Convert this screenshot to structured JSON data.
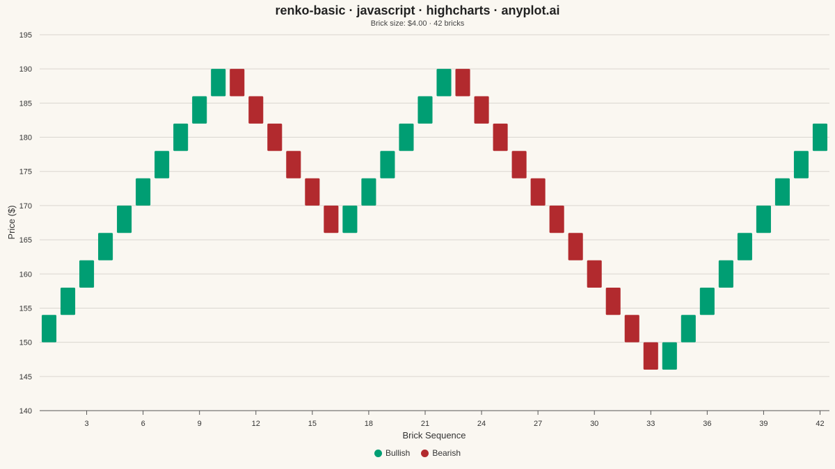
{
  "chart_data": {
    "type": "renko",
    "title": "renko-basic · javascript · highcharts · anyplot.ai",
    "subtitle": "Brick size: $4.00 · 42 bricks",
    "xlabel": "Brick Sequence",
    "ylabel": "Price ($)",
    "xlim": [
      0.5,
      42.5
    ],
    "ylim": [
      140,
      195
    ],
    "x_ticks": [
      3,
      6,
      9,
      12,
      15,
      18,
      21,
      24,
      27,
      30,
      33,
      36,
      39,
      42
    ],
    "y_ticks": [
      140,
      145,
      150,
      155,
      160,
      165,
      170,
      175,
      180,
      185,
      190,
      195
    ],
    "grid": true,
    "legend_position": "bottom",
    "colors": {
      "bullish": "#009E73",
      "bearish": "#B22A2E"
    },
    "series": [
      {
        "name": "Bullish",
        "color": "#009E73"
      },
      {
        "name": "Bearish",
        "color": "#B22A2E"
      }
    ],
    "bricks": [
      {
        "x": 1,
        "low": 150,
        "high": 154,
        "dir": "up"
      },
      {
        "x": 2,
        "low": 154,
        "high": 158,
        "dir": "up"
      },
      {
        "x": 3,
        "low": 158,
        "high": 162,
        "dir": "up"
      },
      {
        "x": 4,
        "low": 162,
        "high": 166,
        "dir": "up"
      },
      {
        "x": 5,
        "low": 166,
        "high": 170,
        "dir": "up"
      },
      {
        "x": 6,
        "low": 170,
        "high": 174,
        "dir": "up"
      },
      {
        "x": 7,
        "low": 174,
        "high": 178,
        "dir": "up"
      },
      {
        "x": 8,
        "low": 178,
        "high": 182,
        "dir": "up"
      },
      {
        "x": 9,
        "low": 182,
        "high": 186,
        "dir": "up"
      },
      {
        "x": 10,
        "low": 186,
        "high": 190,
        "dir": "up"
      },
      {
        "x": 11,
        "low": 186,
        "high": 190,
        "dir": "down"
      },
      {
        "x": 12,
        "low": 182,
        "high": 186,
        "dir": "down"
      },
      {
        "x": 13,
        "low": 178,
        "high": 182,
        "dir": "down"
      },
      {
        "x": 14,
        "low": 174,
        "high": 178,
        "dir": "down"
      },
      {
        "x": 15,
        "low": 170,
        "high": 174,
        "dir": "down"
      },
      {
        "x": 16,
        "low": 166,
        "high": 170,
        "dir": "down"
      },
      {
        "x": 17,
        "low": 166,
        "high": 170,
        "dir": "up"
      },
      {
        "x": 18,
        "low": 170,
        "high": 174,
        "dir": "up"
      },
      {
        "x": 19,
        "low": 174,
        "high": 178,
        "dir": "up"
      },
      {
        "x": 20,
        "low": 178,
        "high": 182,
        "dir": "up"
      },
      {
        "x": 21,
        "low": 182,
        "high": 186,
        "dir": "up"
      },
      {
        "x": 22,
        "low": 186,
        "high": 190,
        "dir": "up"
      },
      {
        "x": 23,
        "low": 186,
        "high": 190,
        "dir": "down"
      },
      {
        "x": 24,
        "low": 182,
        "high": 186,
        "dir": "down"
      },
      {
        "x": 25,
        "low": 178,
        "high": 182,
        "dir": "down"
      },
      {
        "x": 26,
        "low": 174,
        "high": 178,
        "dir": "down"
      },
      {
        "x": 27,
        "low": 170,
        "high": 174,
        "dir": "down"
      },
      {
        "x": 28,
        "low": 166,
        "high": 170,
        "dir": "down"
      },
      {
        "x": 29,
        "low": 162,
        "high": 166,
        "dir": "down"
      },
      {
        "x": 30,
        "low": 158,
        "high": 162,
        "dir": "down"
      },
      {
        "x": 31,
        "low": 154,
        "high": 158,
        "dir": "down"
      },
      {
        "x": 32,
        "low": 150,
        "high": 154,
        "dir": "down"
      },
      {
        "x": 33,
        "low": 146,
        "high": 150,
        "dir": "down"
      },
      {
        "x": 34,
        "low": 146,
        "high": 150,
        "dir": "up"
      },
      {
        "x": 35,
        "low": 150,
        "high": 154,
        "dir": "up"
      },
      {
        "x": 36,
        "low": 154,
        "high": 158,
        "dir": "up"
      },
      {
        "x": 37,
        "low": 158,
        "high": 162,
        "dir": "up"
      },
      {
        "x": 38,
        "low": 162,
        "high": 166,
        "dir": "up"
      },
      {
        "x": 39,
        "low": 166,
        "high": 170,
        "dir": "up"
      },
      {
        "x": 40,
        "low": 170,
        "high": 174,
        "dir": "up"
      },
      {
        "x": 41,
        "low": 174,
        "high": 178,
        "dir": "up"
      },
      {
        "x": 42,
        "low": 178,
        "high": 182,
        "dir": "up"
      }
    ]
  }
}
